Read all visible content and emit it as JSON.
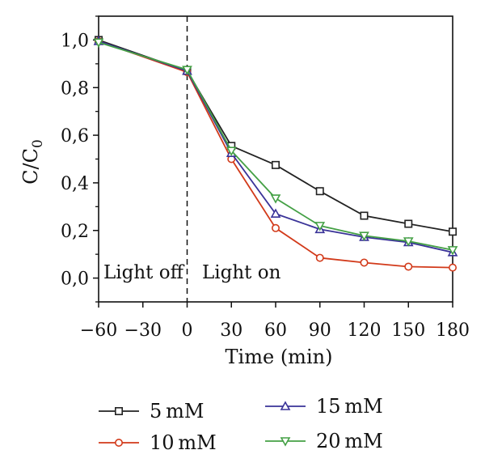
{
  "chart_data": {
    "type": "line",
    "title": "",
    "xlabel": "Time (min)",
    "ylabel": "C/C",
    "ylabel_sub": "0",
    "x": [
      -60,
      0,
      30,
      60,
      90,
      120,
      150,
      180
    ],
    "xlim": [
      -60,
      180
    ],
    "ylim": [
      -0.1,
      1.1
    ],
    "x_ticks": [
      -60,
      -30,
      0,
      30,
      60,
      90,
      120,
      150,
      180
    ],
    "x_tick_labels": [
      "−60",
      "−30",
      "0",
      "30",
      "60",
      "90",
      "120",
      "150",
      "180"
    ],
    "y_ticks": [
      0.0,
      0.2,
      0.4,
      0.6,
      0.8,
      1.0
    ],
    "y_tick_labels": [
      "0,0",
      "0,2",
      "0,4",
      "0,6",
      "0,8",
      "1,0"
    ],
    "grid": false,
    "legend_position": "bottom",
    "annotations": {
      "light_off": "Light off",
      "light_on": "Light on",
      "divider_x": 0
    },
    "series": [
      {
        "name": "5 mM",
        "color": "#222222",
        "marker": "square",
        "values": [
          1.0,
          0.87,
          0.555,
          0.475,
          0.365,
          0.262,
          0.228,
          0.195
        ]
      },
      {
        "name": "10 mM",
        "color": "#d23a1a",
        "marker": "circle",
        "values": [
          0.995,
          0.865,
          0.5,
          0.21,
          0.085,
          0.065,
          0.048,
          0.044
        ]
      },
      {
        "name": "15 mM",
        "color": "#3a3398",
        "marker": "triangle-up",
        "values": [
          0.995,
          0.87,
          0.525,
          0.27,
          0.205,
          0.172,
          0.15,
          0.108
        ]
      },
      {
        "name": "20 mM",
        "color": "#44a045",
        "marker": "triangle-down",
        "values": [
          0.99,
          0.875,
          0.535,
          0.335,
          0.22,
          0.178,
          0.155,
          0.118
        ]
      }
    ]
  }
}
